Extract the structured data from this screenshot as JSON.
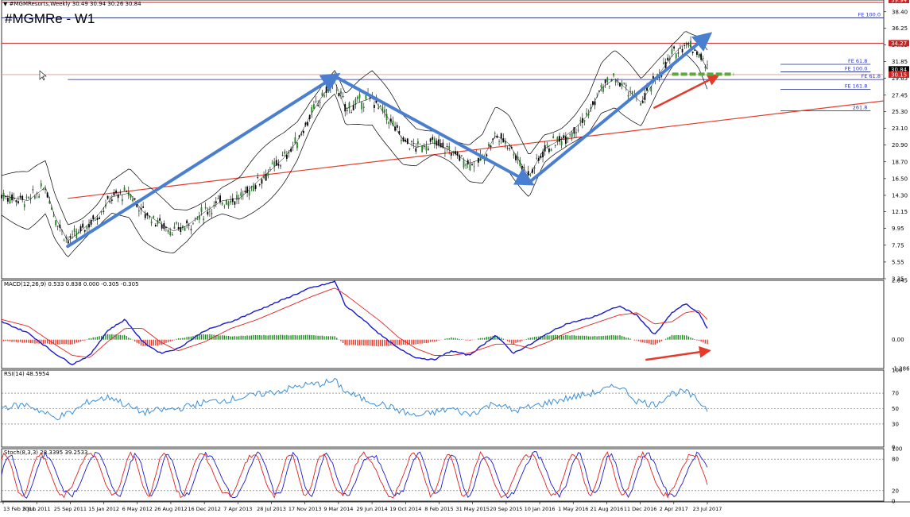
{
  "header": {
    "info_text": "▼ #MGMResorts,Weekly  30.49 30.94 30.26 30.84",
    "chart_title": "#MGMRe - W1"
  },
  "colors": {
    "price_line": "#000000",
    "bull_candle": "#1e8a1e",
    "bear_candle": "#000000",
    "bollinger": "#000000",
    "trend_arrow": "#4a7fd0",
    "support_line": "#e53a2a",
    "fib_line": "#1a237e",
    "fib_label": "#2233cc",
    "red_level": "#cc2222",
    "pink_level": "#f0a0a0",
    "green_zone": "#5ca83c",
    "macd_line": "#1a1acc",
    "macd_signal": "#e02020",
    "hist_pos": "#1e8a1e",
    "hist_neg": "#e53a2a",
    "rsi_line": "#3a8fd8",
    "stoch_main": "#1a1acc",
    "stoch_signal": "#e02020"
  },
  "chart_data": [
    {
      "type": "candlestick",
      "panel": "price",
      "ylim": [
        3.35,
        39.94
      ],
      "y_ticks": [
        "38.40",
        "36.25",
        "34.05",
        "31.85",
        "29.65",
        "27.45",
        "25.30",
        "23.10",
        "20.90",
        "18.70",
        "16.50",
        "14.30",
        "12.15",
        "9.95",
        "7.75",
        "5.55",
        "3.35"
      ],
      "price_tags": [
        {
          "label": "39.94",
          "value": 39.94,
          "color": "#cc2222"
        },
        {
          "label": "34.27",
          "value": 34.27,
          "color": "#cc2222"
        },
        {
          "label": "30.84",
          "value": 30.84,
          "color": "#000000"
        },
        {
          "label": "30.15",
          "value": 30.15,
          "color": "#cc2222"
        }
      ],
      "fib_levels": [
        {
          "label": "FE 100.0",
          "value": 37.6,
          "x_from": 0.0,
          "x_to": 1.0
        },
        {
          "label": "FE 61.8",
          "value": 31.5,
          "x_from": 0.883,
          "x_to": 0.985
        },
        {
          "label": "FE 100.0",
          "value": 30.5,
          "x_from": 0.883,
          "x_to": 0.985
        },
        {
          "label": "FE 61.8",
          "value": 29.5,
          "x_from": 0.075,
          "x_to": 1.0
        },
        {
          "label": "FE 161.8",
          "value": 28.2,
          "x_from": 0.883,
          "x_to": 0.985
        },
        {
          "label": "261.8",
          "value": 25.4,
          "x_from": 0.883,
          "x_to": 0.985
        }
      ],
      "horizontal_levels": [
        {
          "value": 34.27,
          "color_key": "red_level"
        },
        {
          "value": 30.15,
          "color_key": "pink_level"
        }
      ],
      "support_line": {
        "x0": 0.075,
        "y0": 13.9,
        "x1": 1.0,
        "y1": 26.7
      },
      "trend_arrows": [
        {
          "from": [
            0.075,
            7.6
          ],
          "to": [
            0.378,
            29.9
          ]
        },
        {
          "from": [
            0.378,
            29.9
          ],
          "to": [
            0.598,
            16.0
          ]
        },
        {
          "from": [
            0.598,
            16.0
          ],
          "to": [
            0.8,
            35.2
          ]
        },
        {
          "from": [
            0.74,
            25.8
          ],
          "to": [
            0.81,
            29.9
          ],
          "color_key": "support_line"
        }
      ],
      "green_zone": {
        "x0": 0.76,
        "x1": 0.83,
        "value": 30.2
      },
      "series": [
        {
          "name": "price",
          "key_points": [
            [
              0.0,
              14.3
            ],
            [
              0.03,
              13.6
            ],
            [
              0.05,
              15.4
            ],
            [
              0.06,
              11.6
            ],
            [
              0.075,
              8.3
            ],
            [
              0.09,
              9.6
            ],
            [
              0.11,
              11.8
            ],
            [
              0.125,
              14.1
            ],
            [
              0.145,
              14.6
            ],
            [
              0.16,
              12.2
            ],
            [
              0.18,
              10.6
            ],
            [
              0.195,
              9.6
            ],
            [
              0.21,
              10.3
            ],
            [
              0.23,
              12.1
            ],
            [
              0.25,
              13.6
            ],
            [
              0.27,
              13.9
            ],
            [
              0.29,
              16.1
            ],
            [
              0.305,
              17.6
            ],
            [
              0.32,
              19.2
            ],
            [
              0.335,
              21.4
            ],
            [
              0.35,
              24.8
            ],
            [
              0.365,
              27.6
            ],
            [
              0.378,
              29.2
            ],
            [
              0.39,
              25.6
            ],
            [
              0.405,
              26.5
            ],
            [
              0.42,
              27.1
            ],
            [
              0.44,
              24.2
            ],
            [
              0.455,
              21.6
            ],
            [
              0.47,
              20.6
            ],
            [
              0.49,
              21.2
            ],
            [
              0.51,
              20.1
            ],
            [
              0.53,
              18.5
            ],
            [
              0.545,
              19.1
            ],
            [
              0.56,
              22.2
            ],
            [
              0.575,
              21.1
            ],
            [
              0.59,
              18.2
            ],
            [
              0.598,
              16.8
            ],
            [
              0.615,
              20.4
            ],
            [
              0.635,
              21.7
            ],
            [
              0.65,
              23.1
            ],
            [
              0.665,
              24.9
            ],
            [
              0.68,
              28.4
            ],
            [
              0.695,
              29.6
            ],
            [
              0.71,
              28.1
            ],
            [
              0.725,
              26.5
            ],
            [
              0.745,
              30.2
            ],
            [
              0.76,
              32.6
            ],
            [
              0.775,
              34.4
            ],
            [
              0.79,
              33.1
            ],
            [
              0.8,
              30.8
            ]
          ]
        }
      ],
      "bollinger_offset": 2.6
    },
    {
      "type": "macd",
      "panel": "macd",
      "title": "MACD(12,26,9) 0.533 0.838 0.000 -0.305 -0.305",
      "ylim": [
        -1.286,
        2.645
      ],
      "y_ticks": [
        "2.645",
        "0.00",
        "-1.286"
      ],
      "series": [
        {
          "name": "macd",
          "key_points": [
            [
              0.0,
              0.8
            ],
            [
              0.03,
              0.3
            ],
            [
              0.06,
              -0.6
            ],
            [
              0.08,
              -1.1
            ],
            [
              0.1,
              -0.7
            ],
            [
              0.12,
              0.4
            ],
            [
              0.14,
              0.9
            ],
            [
              0.16,
              -0.1
            ],
            [
              0.18,
              -0.6
            ],
            [
              0.2,
              -0.4
            ],
            [
              0.23,
              0.4
            ],
            [
              0.26,
              0.8
            ],
            [
              0.29,
              1.3
            ],
            [
              0.32,
              1.8
            ],
            [
              0.35,
              2.3
            ],
            [
              0.37,
              2.5
            ],
            [
              0.378,
              2.6
            ],
            [
              0.39,
              1.5
            ],
            [
              0.41,
              0.9
            ],
            [
              0.43,
              0.2
            ],
            [
              0.45,
              -0.4
            ],
            [
              0.47,
              -0.8
            ],
            [
              0.49,
              -0.9
            ],
            [
              0.51,
              -0.5
            ],
            [
              0.53,
              -0.7
            ],
            [
              0.56,
              0.2
            ],
            [
              0.58,
              -0.6
            ],
            [
              0.6,
              -0.2
            ],
            [
              0.62,
              0.3
            ],
            [
              0.64,
              0.7
            ],
            [
              0.67,
              1.0
            ],
            [
              0.7,
              1.5
            ],
            [
              0.72,
              1.1
            ],
            [
              0.74,
              0.2
            ],
            [
              0.76,
              1.2
            ],
            [
              0.775,
              1.6
            ],
            [
              0.79,
              1.2
            ],
            [
              0.8,
              0.5
            ]
          ]
        },
        {
          "name": "signal",
          "key_points": [
            [
              0.0,
              0.9
            ],
            [
              0.03,
              0.6
            ],
            [
              0.06,
              -0.2
            ],
            [
              0.08,
              -0.7
            ],
            [
              0.1,
              -0.8
            ],
            [
              0.12,
              -0.1
            ],
            [
              0.14,
              0.5
            ],
            [
              0.16,
              0.5
            ],
            [
              0.18,
              -0.1
            ],
            [
              0.2,
              -0.5
            ],
            [
              0.23,
              -0.1
            ],
            [
              0.26,
              0.5
            ],
            [
              0.29,
              0.9
            ],
            [
              0.32,
              1.4
            ],
            [
              0.35,
              1.9
            ],
            [
              0.37,
              2.2
            ],
            [
              0.378,
              2.3
            ],
            [
              0.39,
              2.0
            ],
            [
              0.41,
              1.4
            ],
            [
              0.43,
              0.8
            ],
            [
              0.45,
              0.1
            ],
            [
              0.47,
              -0.4
            ],
            [
              0.49,
              -0.7
            ],
            [
              0.51,
              -0.7
            ],
            [
              0.53,
              -0.6
            ],
            [
              0.56,
              -0.2
            ],
            [
              0.58,
              -0.2
            ],
            [
              0.6,
              -0.4
            ],
            [
              0.62,
              -0.1
            ],
            [
              0.64,
              0.3
            ],
            [
              0.67,
              0.7
            ],
            [
              0.7,
              1.1
            ],
            [
              0.72,
              1.2
            ],
            [
              0.74,
              0.7
            ],
            [
              0.76,
              0.8
            ],
            [
              0.775,
              1.2
            ],
            [
              0.79,
              1.3
            ],
            [
              0.8,
              0.9
            ]
          ]
        }
      ],
      "hist_arrow": {
        "from": [
          0.73,
          -0.9
        ],
        "to": [
          0.8,
          -0.5
        ]
      }
    },
    {
      "type": "line",
      "panel": "rsi",
      "title": "RSI(14) 48.5954",
      "ylim": [
        0,
        100
      ],
      "y_ticks": [
        "100",
        "70",
        "50",
        "30",
        "0"
      ],
      "levels": [
        70,
        50,
        30
      ],
      "series": [
        {
          "name": "rsi",
          "key_points": [
            [
              0.0,
              52
            ],
            [
              0.03,
              55
            ],
            [
              0.06,
              38
            ],
            [
              0.08,
              45
            ],
            [
              0.1,
              60
            ],
            [
              0.125,
              65
            ],
            [
              0.14,
              55
            ],
            [
              0.16,
              45
            ],
            [
              0.18,
              48
            ],
            [
              0.2,
              50
            ],
            [
              0.23,
              58
            ],
            [
              0.26,
              62
            ],
            [
              0.29,
              68
            ],
            [
              0.32,
              74
            ],
            [
              0.34,
              80
            ],
            [
              0.36,
              82
            ],
            [
              0.378,
              86
            ],
            [
              0.39,
              72
            ],
            [
              0.41,
              62
            ],
            [
              0.43,
              56
            ],
            [
              0.45,
              48
            ],
            [
              0.47,
              40
            ],
            [
              0.49,
              45
            ],
            [
              0.51,
              50
            ],
            [
              0.53,
              42
            ],
            [
              0.56,
              58
            ],
            [
              0.58,
              47
            ],
            [
              0.6,
              52
            ],
            [
              0.62,
              58
            ],
            [
              0.64,
              63
            ],
            [
              0.67,
              70
            ],
            [
              0.7,
              80
            ],
            [
              0.72,
              60
            ],
            [
              0.74,
              55
            ],
            [
              0.76,
              70
            ],
            [
              0.775,
              72
            ],
            [
              0.79,
              60
            ],
            [
              0.8,
              49
            ]
          ]
        }
      ]
    },
    {
      "type": "line",
      "panel": "stoch",
      "title": "Stoch(8,3,3) 28.3395 39.2533",
      "ylim": [
        0,
        100
      ],
      "y_ticks": [
        "100",
        "80",
        "20",
        "0"
      ],
      "levels": [
        80,
        20
      ],
      "series": [
        {
          "name": "stoch_main",
          "oscillations": 22,
          "phase": 0.0
        },
        {
          "name": "stoch_signal",
          "oscillations": 22,
          "phase": 0.25
        }
      ]
    }
  ],
  "x_axis": {
    "tick_labels": [
      "13 Feb 2011",
      "5 Jun 2011",
      "25 Sep 2011",
      "15 Jan 2012",
      "6 May 2012",
      "26 Aug 2012",
      "16 Dec 2012",
      "7 Apr 2013",
      "28 Jul 2013",
      "17 Nov 2013",
      "9 Mar 2014",
      "29 Jun 2014",
      "19 Oct 2014",
      "8 Feb 2015",
      "31 May 2015",
      "20 Sep 2015",
      "10 Jan 2016",
      "1 May 2016",
      "21 Aug 2016",
      "11 Dec 2016",
      "2 Apr 2017",
      "23 Jul 2017"
    ]
  }
}
